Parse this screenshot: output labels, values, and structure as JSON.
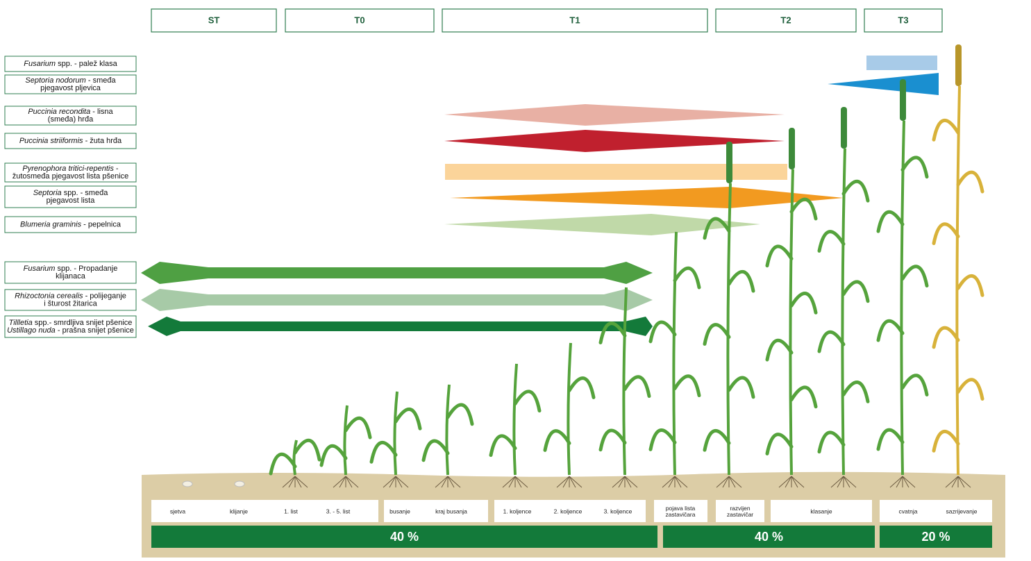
{
  "protection_terms": [
    "ST",
    "T0",
    "T1",
    "T2",
    "T3"
  ],
  "diseases": [
    {
      "lines": [
        {
          "italic": "Fusarium",
          "text": " spp. - palež klasa"
        }
      ]
    },
    {
      "lines": [
        {
          "italic": "Septoria nodorum",
          "text": " - smeđa"
        },
        {
          "text": "pjegavost pljevica"
        }
      ]
    },
    {
      "lines": [
        {
          "italic": "Puccinia recondita",
          "text": " - lisna"
        },
        {
          "text": "(smeđa) hrđa"
        }
      ]
    },
    {
      "lines": [
        {
          "italic": "Puccinia striiformis",
          "text": " - žuta hrđa"
        }
      ]
    },
    {
      "lines": [
        {
          "italic": "Pyrenophora tritici-repentis",
          "text": " -"
        },
        {
          "text": "žutosmeđa pjegavost lista pšenice"
        }
      ]
    },
    {
      "lines": [
        {
          "italic": "Septoria",
          "text": " spp. - smeđa"
        },
        {
          "text": "pjegavost lista"
        }
      ]
    },
    {
      "lines": [
        {
          "italic": "Blumeria graminis",
          "text": " - pepelnica"
        }
      ]
    },
    {
      "lines": [
        {
          "italic": "Fusarium",
          "text": " spp. - Propadanje"
        },
        {
          "text": "klijanaca"
        }
      ]
    },
    {
      "lines": [
        {
          "italic": "Rhizoctonia cerealis",
          "text": " - polijeganje"
        },
        {
          "text": "i šturost žitarica"
        }
      ]
    },
    {
      "lines": [
        {
          "italic": "Tillletia",
          "text": " spp.- smrdljiva snijet pšenice"
        },
        {
          "italic": "Ustillago nuda",
          "text": " - prašna snijet pšenice"
        }
      ]
    }
  ],
  "growth_stages": [
    {
      "lines": [
        "sjetva"
      ]
    },
    {
      "lines": [
        "klijanje"
      ]
    },
    {
      "lines": [
        "1. list"
      ]
    },
    {
      "lines": [
        "3. - 5. list"
      ]
    },
    {
      "lines": [
        "busanje"
      ]
    },
    {
      "lines": [
        "kraj busanja"
      ]
    },
    {
      "lines": [
        "1. koljence"
      ]
    },
    {
      "lines": [
        "2. koljence"
      ]
    },
    {
      "lines": [
        "3. koljence"
      ]
    },
    {
      "lines": [
        "pojava lista",
        "zastavičara"
      ]
    },
    {
      "lines": [
        "razvijen",
        "zastavičar"
      ]
    },
    {
      "lines": [
        "klasanje"
      ]
    },
    {
      "lines": [
        "cvatnja"
      ]
    },
    {
      "lines": [
        "sazrijevanje"
      ]
    }
  ],
  "shares": [
    "40 %",
    "40 %",
    "20 %"
  ]
}
